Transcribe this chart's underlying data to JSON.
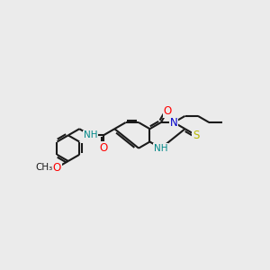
{
  "bg_color": "#ebebeb",
  "bond_color": "#1a1a1a",
  "bond_lw": 1.5,
  "atom_colors": {
    "O": "#ff0000",
    "N": "#0000cc",
    "S": "#b8b800",
    "NH": "#008888",
    "C": "#1a1a1a"
  },
  "s": 0.62,
  "ox": 5.55,
  "oy": 5.05
}
